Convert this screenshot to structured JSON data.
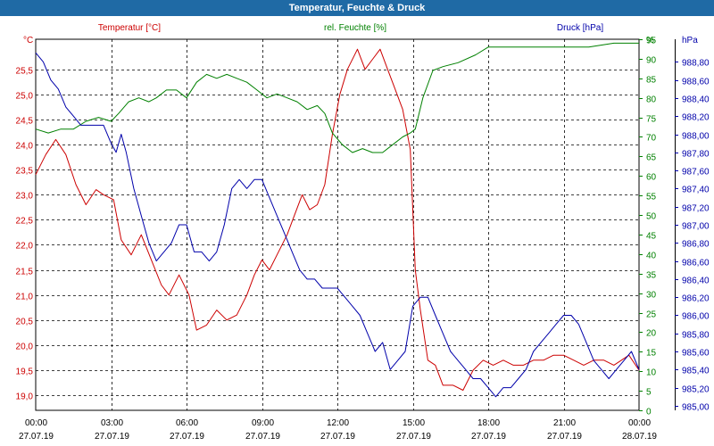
{
  "window_title": "Temperatur, Feuchte & Druck",
  "chart_data": {
    "type": "line",
    "title": "Temperatur, Feuchte & Druck",
    "x_ticks": [
      {
        "time": "00:00",
        "date": "27.07.19"
      },
      {
        "time": "03:00",
        "date": "27.07.19"
      },
      {
        "time": "06:00",
        "date": "27.07.19"
      },
      {
        "time": "09:00",
        "date": "27.07.19"
      },
      {
        "time": "12:00",
        "date": "27.07.19"
      },
      {
        "time": "15:00",
        "date": "27.07.19"
      },
      {
        "time": "18:00",
        "date": "27.07.19"
      },
      {
        "time": "21:00",
        "date": "27.07.19"
      },
      {
        "time": "00:00",
        "date": "28.07.19"
      }
    ],
    "x_range_hours": [
      0,
      24
    ],
    "axes": {
      "left": {
        "label": "Temperatur [°C]",
        "unit": "°C",
        "color": "#cc0000",
        "min": 18.7,
        "max": 26.1,
        "ticks": [
          "19,0",
          "19,5",
          "20,0",
          "20,5",
          "21,0",
          "21,5",
          "22,0",
          "22,5",
          "23,0",
          "23,5",
          "24,0",
          "24,5",
          "25,0",
          "25,5"
        ]
      },
      "mid": {
        "label": "rel. Feuchte [%]",
        "unit": "%",
        "color": "#008000",
        "min": 0,
        "max": 95,
        "ticks": [
          "0",
          "5",
          "10",
          "15",
          "20",
          "25",
          "30",
          "35",
          "40",
          "45",
          "50",
          "55",
          "60",
          "65",
          "70",
          "75",
          "80",
          "85",
          "90",
          "95"
        ]
      },
      "right": {
        "label": "Druck [hPa]",
        "unit": "hPa",
        "color": "#0000aa",
        "min": 984.95,
        "max": 989.05,
        "ticks": [
          "985,00",
          "985,20",
          "985,40",
          "985,60",
          "985,80",
          "986,00",
          "986,20",
          "986,40",
          "986,60",
          "986,80",
          "987,00",
          "987,20",
          "987,40",
          "987,60",
          "987,80",
          "988,00",
          "988,20",
          "988,40",
          "988,60",
          "988,80"
        ]
      }
    },
    "grid": true,
    "series": [
      {
        "name": "Temperatur",
        "axis": "left",
        "color": "#cc0000",
        "points": [
          [
            0,
            23.4
          ],
          [
            0.4,
            23.8
          ],
          [
            0.8,
            24.1
          ],
          [
            1.2,
            23.8
          ],
          [
            1.6,
            23.2
          ],
          [
            2.0,
            22.8
          ],
          [
            2.4,
            23.1
          ],
          [
            2.7,
            23.0
          ],
          [
            3.1,
            22.9
          ],
          [
            3.4,
            22.1
          ],
          [
            3.8,
            21.8
          ],
          [
            4.2,
            22.2
          ],
          [
            4.6,
            21.7
          ],
          [
            5.0,
            21.2
          ],
          [
            5.3,
            21.0
          ],
          [
            5.7,
            21.4
          ],
          [
            6.1,
            21.0
          ],
          [
            6.4,
            20.3
          ],
          [
            6.8,
            20.4
          ],
          [
            7.2,
            20.7
          ],
          [
            7.6,
            20.5
          ],
          [
            8.0,
            20.6
          ],
          [
            8.4,
            21.0
          ],
          [
            8.7,
            21.4
          ],
          [
            9.0,
            21.7
          ],
          [
            9.3,
            21.5
          ],
          [
            9.6,
            21.8
          ],
          [
            10.0,
            22.2
          ],
          [
            10.3,
            22.6
          ],
          [
            10.6,
            23.0
          ],
          [
            10.9,
            22.7
          ],
          [
            11.2,
            22.8
          ],
          [
            11.5,
            23.2
          ],
          [
            11.8,
            24.2
          ],
          [
            12.1,
            25.0
          ],
          [
            12.4,
            25.5
          ],
          [
            12.8,
            25.9
          ],
          [
            13.1,
            25.5
          ],
          [
            13.4,
            25.7
          ],
          [
            13.7,
            25.9
          ],
          [
            14.0,
            25.5
          ],
          [
            14.3,
            25.1
          ],
          [
            14.6,
            24.7
          ],
          [
            14.9,
            23.9
          ],
          [
            15.1,
            21.5
          ],
          [
            15.3,
            20.7
          ],
          [
            15.6,
            19.7
          ],
          [
            15.9,
            19.6
          ],
          [
            16.2,
            19.2
          ],
          [
            16.6,
            19.2
          ],
          [
            17.0,
            19.1
          ],
          [
            17.4,
            19.5
          ],
          [
            17.8,
            19.7
          ],
          [
            18.2,
            19.6
          ],
          [
            18.6,
            19.7
          ],
          [
            19.0,
            19.6
          ],
          [
            19.4,
            19.6
          ],
          [
            19.8,
            19.7
          ],
          [
            20.2,
            19.7
          ],
          [
            20.6,
            19.8
          ],
          [
            21.0,
            19.8
          ],
          [
            21.4,
            19.7
          ],
          [
            21.8,
            19.6
          ],
          [
            22.2,
            19.7
          ],
          [
            22.6,
            19.7
          ],
          [
            23.0,
            19.6
          ],
          [
            23.3,
            19.7
          ],
          [
            23.6,
            19.8
          ],
          [
            24.0,
            19.5
          ]
        ]
      },
      {
        "name": "rel. Feuchte",
        "axis": "mid",
        "color": "#008000",
        "points": [
          [
            0,
            72
          ],
          [
            0.5,
            71
          ],
          [
            1.0,
            72
          ],
          [
            1.5,
            72
          ],
          [
            2.0,
            74
          ],
          [
            2.5,
            75
          ],
          [
            3.0,
            74
          ],
          [
            3.3,
            76
          ],
          [
            3.7,
            79
          ],
          [
            4.1,
            80
          ],
          [
            4.5,
            79
          ],
          [
            4.8,
            80
          ],
          [
            5.2,
            82
          ],
          [
            5.6,
            82
          ],
          [
            6.0,
            80
          ],
          [
            6.4,
            84
          ],
          [
            6.8,
            86
          ],
          [
            7.2,
            85
          ],
          [
            7.6,
            86
          ],
          [
            8.0,
            85
          ],
          [
            8.4,
            84
          ],
          [
            8.8,
            82
          ],
          [
            9.2,
            80
          ],
          [
            9.6,
            81
          ],
          [
            10.0,
            80
          ],
          [
            10.4,
            79
          ],
          [
            10.8,
            77
          ],
          [
            11.2,
            78
          ],
          [
            11.5,
            76
          ],
          [
            11.8,
            71
          ],
          [
            12.2,
            68
          ],
          [
            12.6,
            66
          ],
          [
            13.0,
            67
          ],
          [
            13.4,
            66
          ],
          [
            13.8,
            66
          ],
          [
            14.2,
            68
          ],
          [
            14.6,
            70
          ],
          [
            14.9,
            71
          ],
          [
            15.1,
            72
          ],
          [
            15.4,
            80
          ],
          [
            15.8,
            87
          ],
          [
            16.2,
            88
          ],
          [
            16.8,
            89
          ],
          [
            17.5,
            91
          ],
          [
            18.0,
            93
          ],
          [
            19.0,
            93
          ],
          [
            20.0,
            93
          ],
          [
            21.0,
            93
          ],
          [
            22.0,
            93
          ],
          [
            23.0,
            94
          ],
          [
            24.0,
            94
          ]
        ]
      },
      {
        "name": "Druck",
        "axis": "right",
        "color": "#0000aa",
        "points": [
          [
            0,
            988.9
          ],
          [
            0.3,
            988.8
          ],
          [
            0.6,
            988.6
          ],
          [
            0.9,
            988.5
          ],
          [
            1.2,
            988.3
          ],
          [
            1.5,
            988.2
          ],
          [
            1.8,
            988.1
          ],
          [
            2.1,
            988.1
          ],
          [
            2.4,
            988.1
          ],
          [
            2.7,
            988.1
          ],
          [
            3.0,
            987.9
          ],
          [
            3.2,
            987.8
          ],
          [
            3.4,
            988.0
          ],
          [
            3.6,
            987.8
          ],
          [
            3.9,
            987.4
          ],
          [
            4.2,
            987.1
          ],
          [
            4.5,
            986.8
          ],
          [
            4.8,
            986.6
          ],
          [
            5.1,
            986.7
          ],
          [
            5.4,
            986.8
          ],
          [
            5.7,
            987.0
          ],
          [
            6.0,
            987.0
          ],
          [
            6.3,
            986.7
          ],
          [
            6.6,
            986.7
          ],
          [
            6.9,
            986.6
          ],
          [
            7.2,
            986.7
          ],
          [
            7.5,
            987.0
          ],
          [
            7.8,
            987.4
          ],
          [
            8.1,
            987.5
          ],
          [
            8.4,
            987.4
          ],
          [
            8.7,
            987.5
          ],
          [
            9.0,
            987.5
          ],
          [
            9.3,
            987.3
          ],
          [
            9.6,
            987.1
          ],
          [
            9.9,
            986.9
          ],
          [
            10.2,
            986.7
          ],
          [
            10.5,
            986.5
          ],
          [
            10.8,
            986.4
          ],
          [
            11.1,
            986.4
          ],
          [
            11.4,
            986.3
          ],
          [
            11.7,
            986.3
          ],
          [
            12.0,
            986.3
          ],
          [
            12.3,
            986.2
          ],
          [
            12.6,
            986.1
          ],
          [
            12.9,
            986.0
          ],
          [
            13.2,
            985.8
          ],
          [
            13.5,
            985.6
          ],
          [
            13.8,
            985.7
          ],
          [
            14.1,
            985.4
          ],
          [
            14.4,
            985.5
          ],
          [
            14.7,
            985.6
          ],
          [
            15.0,
            986.1
          ],
          [
            15.3,
            986.2
          ],
          [
            15.6,
            986.2
          ],
          [
            15.9,
            986.0
          ],
          [
            16.2,
            985.8
          ],
          [
            16.5,
            985.6
          ],
          [
            16.8,
            985.5
          ],
          [
            17.1,
            985.4
          ],
          [
            17.4,
            985.3
          ],
          [
            17.7,
            985.3
          ],
          [
            18.0,
            985.2
          ],
          [
            18.3,
            985.1
          ],
          [
            18.6,
            985.2
          ],
          [
            18.9,
            985.2
          ],
          [
            19.2,
            985.3
          ],
          [
            19.5,
            985.4
          ],
          [
            19.8,
            985.6
          ],
          [
            20.1,
            985.7
          ],
          [
            20.4,
            985.8
          ],
          [
            20.7,
            985.9
          ],
          [
            21.0,
            986.0
          ],
          [
            21.3,
            986.0
          ],
          [
            21.6,
            985.9
          ],
          [
            21.9,
            985.7
          ],
          [
            22.2,
            985.5
          ],
          [
            22.5,
            985.4
          ],
          [
            22.8,
            985.3
          ],
          [
            23.1,
            985.4
          ],
          [
            23.4,
            985.5
          ],
          [
            23.7,
            985.6
          ],
          [
            24.0,
            985.4
          ]
        ]
      }
    ]
  }
}
